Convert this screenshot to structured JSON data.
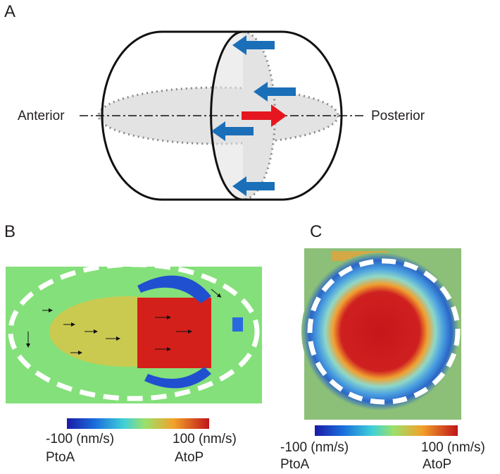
{
  "panel_a": {
    "label": "A",
    "left": "Anterior",
    "right": "Posterior"
  },
  "panel_b": {
    "label": "B",
    "colorbar": {
      "min": "-100 (nm/s)",
      "max": "100 (nm/s)",
      "min_dir": "PtoA",
      "max_dir": "AtoP"
    }
  },
  "panel_c": {
    "label": "C",
    "colorbar": {
      "min": "-100 (nm/s)",
      "max": "100 (nm/s)",
      "min_dir": "PtoA",
      "max_dir": "AtoP"
    }
  }
}
